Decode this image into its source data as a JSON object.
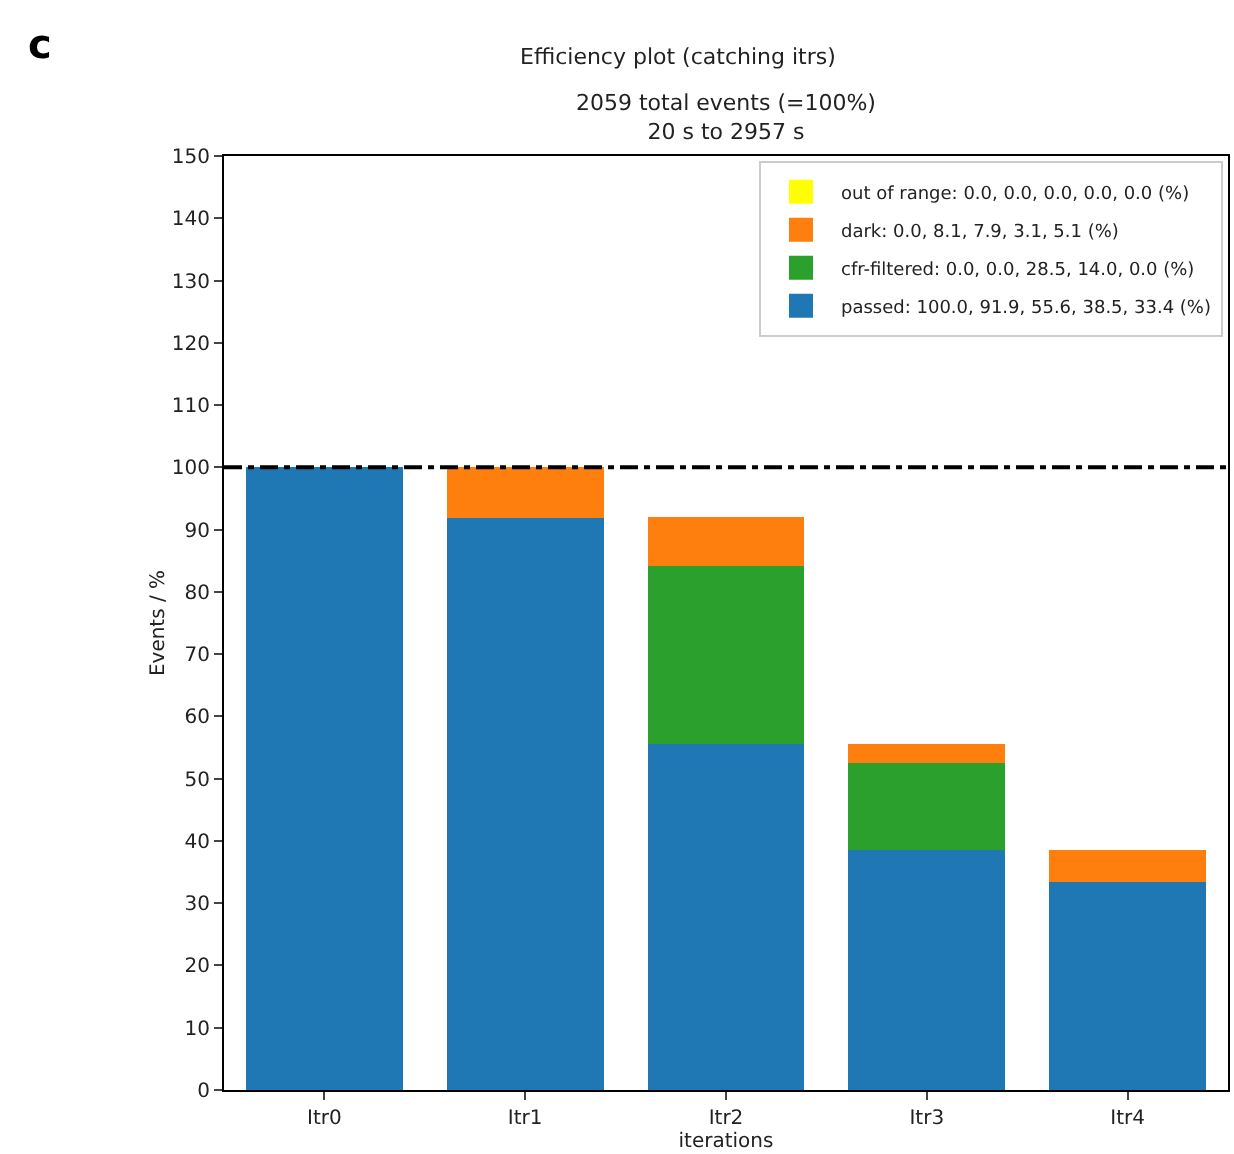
{
  "chart_data": {
    "type": "bar",
    "stacked": true,
    "title": "Efficiency plot (catching itrs)",
    "subtitle": "2059 total events (=100%)\n20 s to 2957 s",
    "xlabel": "iterations",
    "ylabel": "Events / %",
    "categories": [
      "Itr0",
      "Itr1",
      "Itr2",
      "Itr3",
      "Itr4"
    ],
    "series": [
      {
        "name": "passed: 100.0, 91.9, 55.6, 38.5, 33.4 (%)",
        "color": "#1f77b4",
        "values": [
          100.0,
          91.9,
          55.6,
          38.5,
          33.4
        ]
      },
      {
        "name": "cfr-filtered: 0.0, 0.0, 28.5, 14.0, 0.0 (%)",
        "color": "#2ca02c",
        "values": [
          0.0,
          0.0,
          28.5,
          14.0,
          0.0
        ]
      },
      {
        "name": "dark: 0.0, 8.1, 7.9, 3.1, 5.1 (%)",
        "color": "#ff7f0e",
        "values": [
          0.0,
          8.1,
          7.9,
          3.1,
          5.1
        ]
      },
      {
        "name": "out of range: 0.0, 0.0, 0.0, 0.0, 0.0 (%)",
        "color": "#ffff00",
        "values": [
          0.0,
          0.0,
          0.0,
          0.0,
          0.0
        ]
      }
    ],
    "ylim": [
      0,
      150
    ],
    "yticks": [
      0,
      10,
      20,
      30,
      40,
      50,
      60,
      70,
      80,
      90,
      100,
      110,
      120,
      130,
      140,
      150
    ],
    "grid": false,
    "legend": "top right",
    "ref_lines": [
      {
        "axis": "y",
        "value": 100,
        "color": "#000000",
        "line_style": "dashdot"
      }
    ],
    "annotations": [
      "c"
    ]
  }
}
